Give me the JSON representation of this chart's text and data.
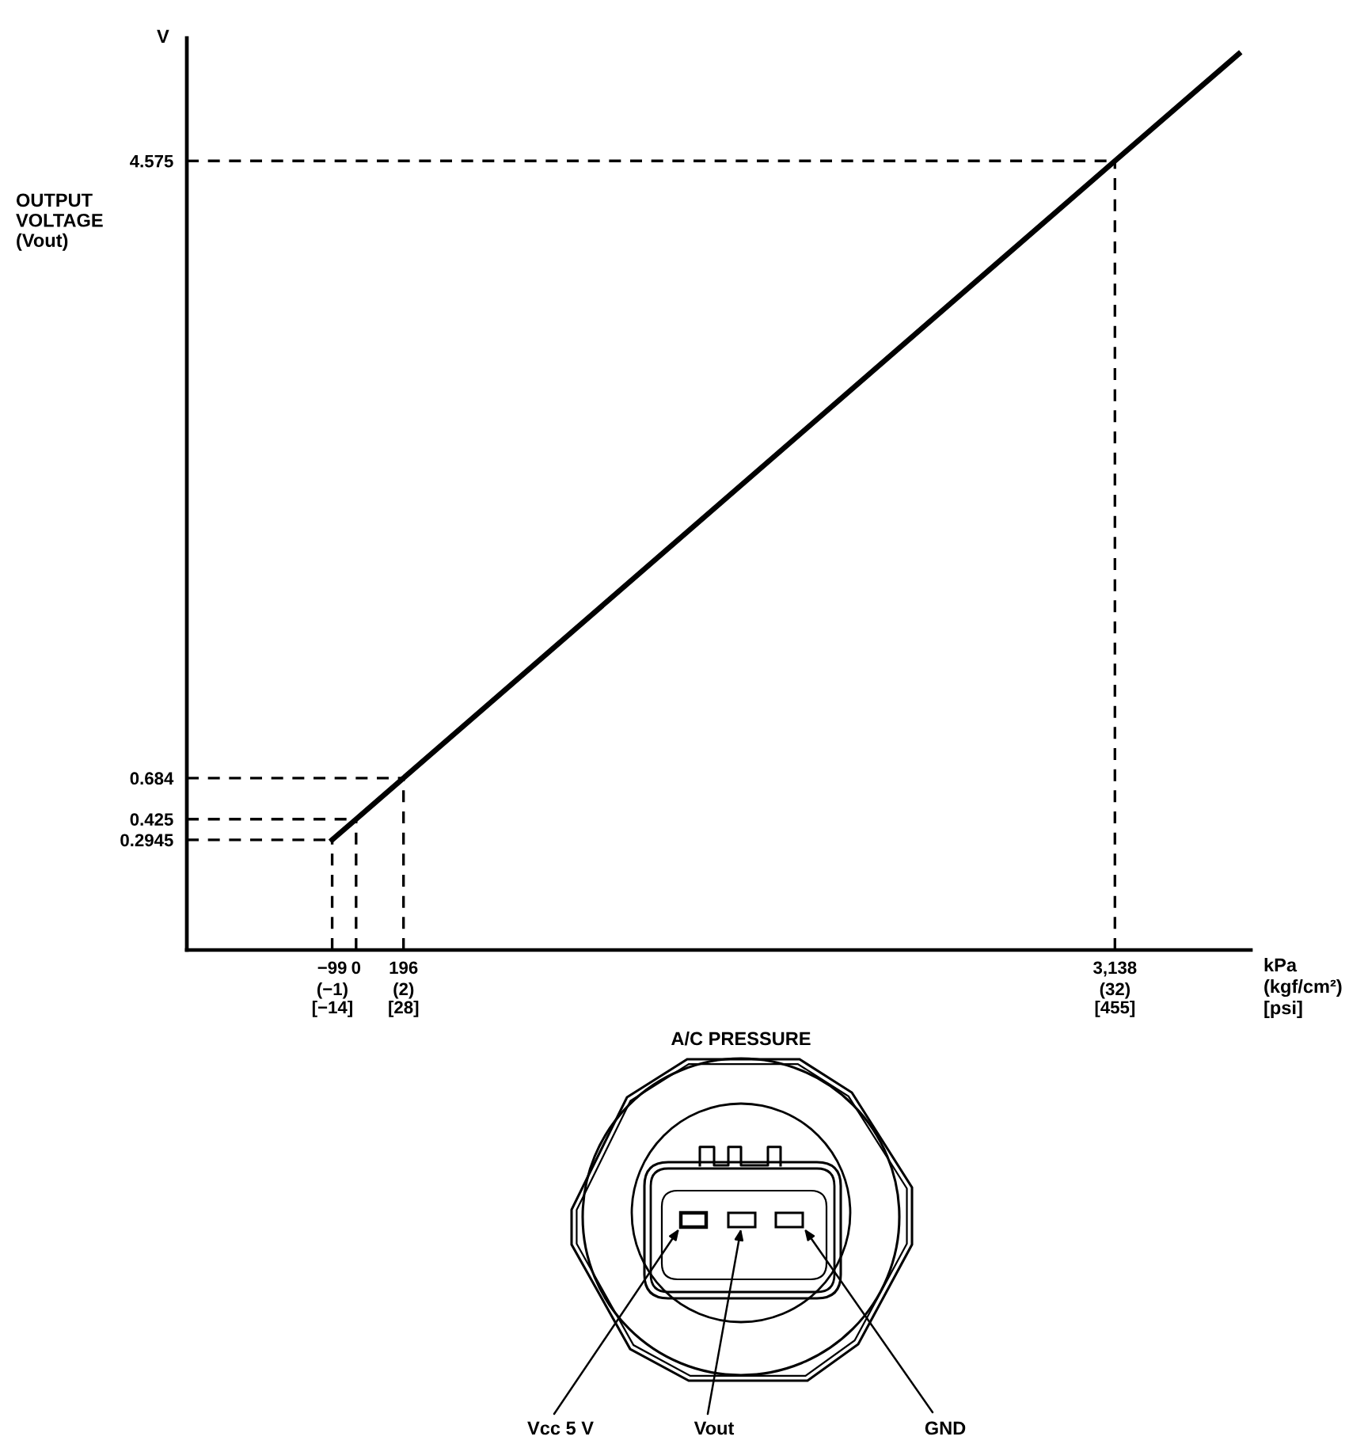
{
  "chart_data": {
    "type": "line",
    "xlabel": "kPa",
    "x2label": "(kgf/cm²)",
    "ylabel": "OUTPUT\nVOLTAGE\n(Vout)",
    "annotations": [
      "V",
      "[psi]",
      "[−14]",
      "[28]",
      "[455]",
      "A/C PRESSURE",
      "Vcc 5 V",
      "Vout",
      "GND"
    ],
    "x": [
      -99,
      0,
      196,
      3138,
      3650
    ],
    "series": [
      {
        "color": "#000000",
        "values": [
          0.2945,
          0.425,
          0.684,
          4.575,
          5.25
        ]
      }
    ],
    "xlim": [
      -700,
      3700
    ],
    "ylim": [
      -0.4,
      5.35
    ],
    "xticks": [
      {
        "value": -99,
        "label": "−99"
      },
      0,
      196,
      {
        "value": 3138,
        "label": "3,138"
      }
    ],
    "x2lim": [
      -7.14,
      37.73
    ],
    "x2ticks": [
      {
        "value": -1,
        "label": "(−1)"
      },
      {
        "value": 2,
        "label": "(2)"
      },
      {
        "value": 32,
        "label": "(32)"
      }
    ],
    "yticks": [
      0.2945,
      0.425,
      0.684,
      4.575
    ],
    "ref_lines": [
      {
        "axis": "x",
        "value": -99,
        "line_style": "dashed"
      },
      {
        "axis": "x",
        "value": 0,
        "line_style": "dashed"
      },
      {
        "axis": "x",
        "value": 196,
        "line_style": "dashed"
      },
      {
        "axis": "x",
        "value": 3138,
        "line_style": "dashed"
      },
      {
        "axis": "y",
        "value": 0.2945,
        "line_style": "dashed"
      },
      {
        "axis": "y",
        "value": 0.425,
        "line_style": "dashed"
      },
      {
        "axis": "y",
        "value": 0.684,
        "line_style": "dashed"
      },
      {
        "axis": "y",
        "value": 4.575,
        "line_style": "dashed"
      }
    ]
  }
}
